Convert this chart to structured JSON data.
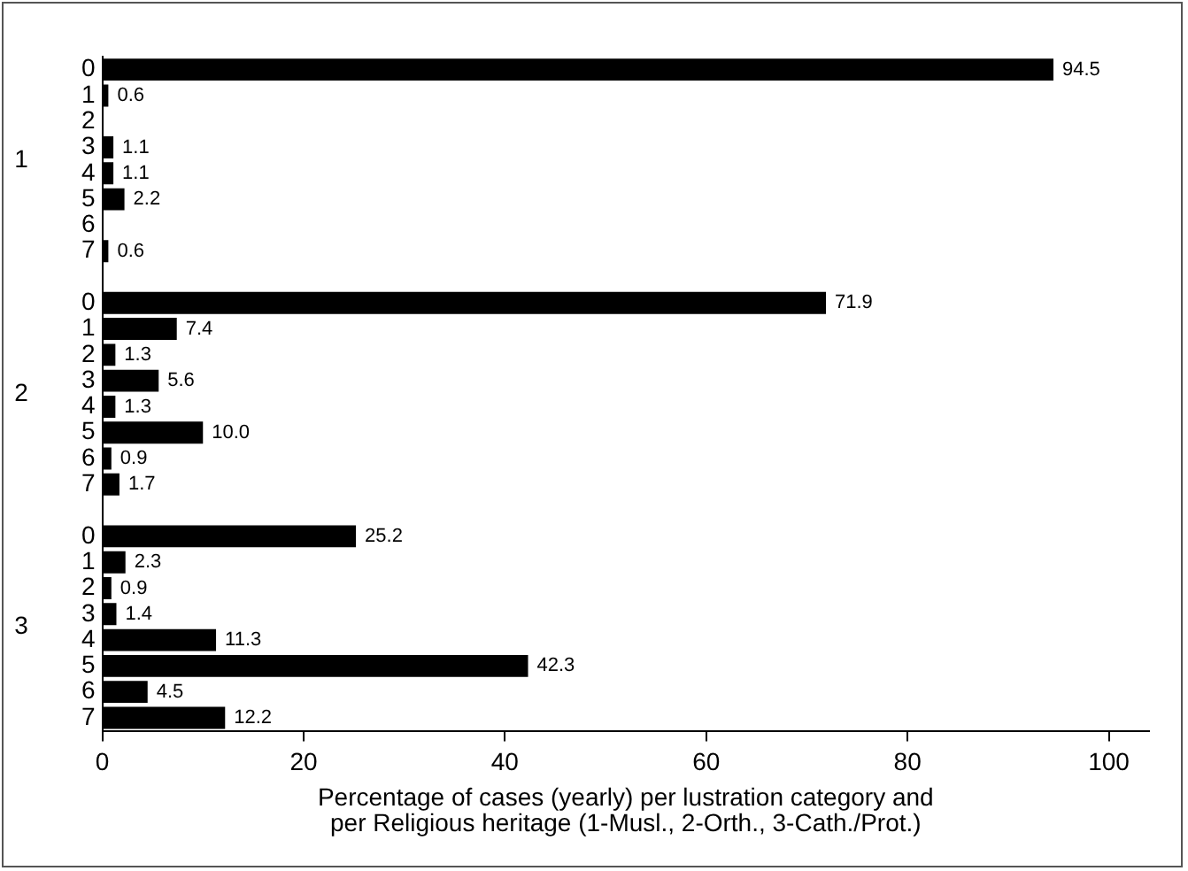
{
  "chart_data": {
    "type": "bar",
    "orientation": "horizontal",
    "categories": [
      "0",
      "1",
      "2",
      "3",
      "4",
      "5",
      "6",
      "7",
      null,
      "0",
      "1",
      "2",
      "3",
      "4",
      "5",
      "6",
      "7",
      null,
      "0",
      "1",
      "2",
      "3",
      "4",
      "5",
      "6",
      "7"
    ],
    "values": [
      94.5,
      0.6,
      null,
      1.1,
      1.1,
      2.2,
      null,
      0.6,
      null,
      71.9,
      7.4,
      1.3,
      5.6,
      1.3,
      10.0,
      0.9,
      1.7,
      null,
      25.2,
      2.3,
      0.9,
      1.4,
      11.3,
      42.3,
      4.5,
      12.2
    ],
    "value_labels": [
      "94.5",
      "0.6",
      null,
      "1.1",
      "1.1",
      "2.2",
      null,
      "0.6",
      null,
      "71.9",
      "7.4",
      "1.3",
      "5.6",
      "1.3",
      "10.0",
      "0.9",
      "1.7",
      null,
      "25.2",
      "2.3",
      "0.9",
      "1.4",
      "11.3",
      "42.3",
      "4.5",
      "12.2"
    ],
    "color": "#000000",
    "xlim": [
      0,
      104
    ],
    "xticks": [
      0,
      20,
      40,
      60,
      80,
      100
    ],
    "xlabel": "Percentage of cases (yearly) per lustration category and\nper Religious heritage (1-Musl., 2-Orth., 3-Cath./Prot.)",
    "annotations": [
      "1",
      "2",
      "3"
    ],
    "grid": false,
    "legend": false
  }
}
